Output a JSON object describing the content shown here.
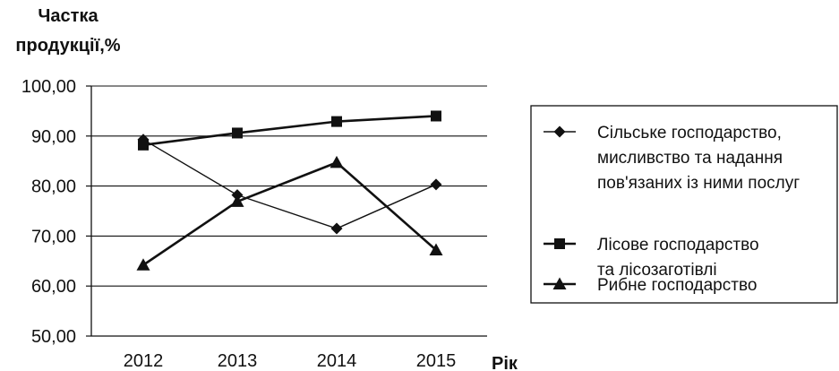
{
  "chart_data": {
    "type": "line",
    "title": "",
    "ylabel_lines": [
      "Частка",
      "продукції,%"
    ],
    "xlabel": "Рік",
    "categories": [
      "2012",
      "2013",
      "2014",
      "2015"
    ],
    "ylim": [
      50,
      100
    ],
    "y_ticks": [
      50,
      60,
      70,
      80,
      90,
      100
    ],
    "y_tick_labels": [
      "50,00",
      "60,00",
      "70,00",
      "80,00",
      "90,00",
      "100,00"
    ],
    "grid": true,
    "legend_placement": "right",
    "series": [
      {
        "name_lines": [
          "Сільське господарство,",
          "мисливство та надання",
          "пов'язаних із ними послуг"
        ],
        "marker": "diamond",
        "values": [
          89.3,
          78.2,
          71.5,
          80.3
        ]
      },
      {
        "name_lines": [
          "Лісове господарство",
          "та лісозаготівлі"
        ],
        "marker": "square",
        "values": [
          88.2,
          90.6,
          92.9,
          94.0
        ]
      },
      {
        "name_lines": [
          "Рибне господарство"
        ],
        "marker": "triangle",
        "values": [
          64.2,
          76.9,
          84.7,
          67.2
        ]
      }
    ]
  }
}
